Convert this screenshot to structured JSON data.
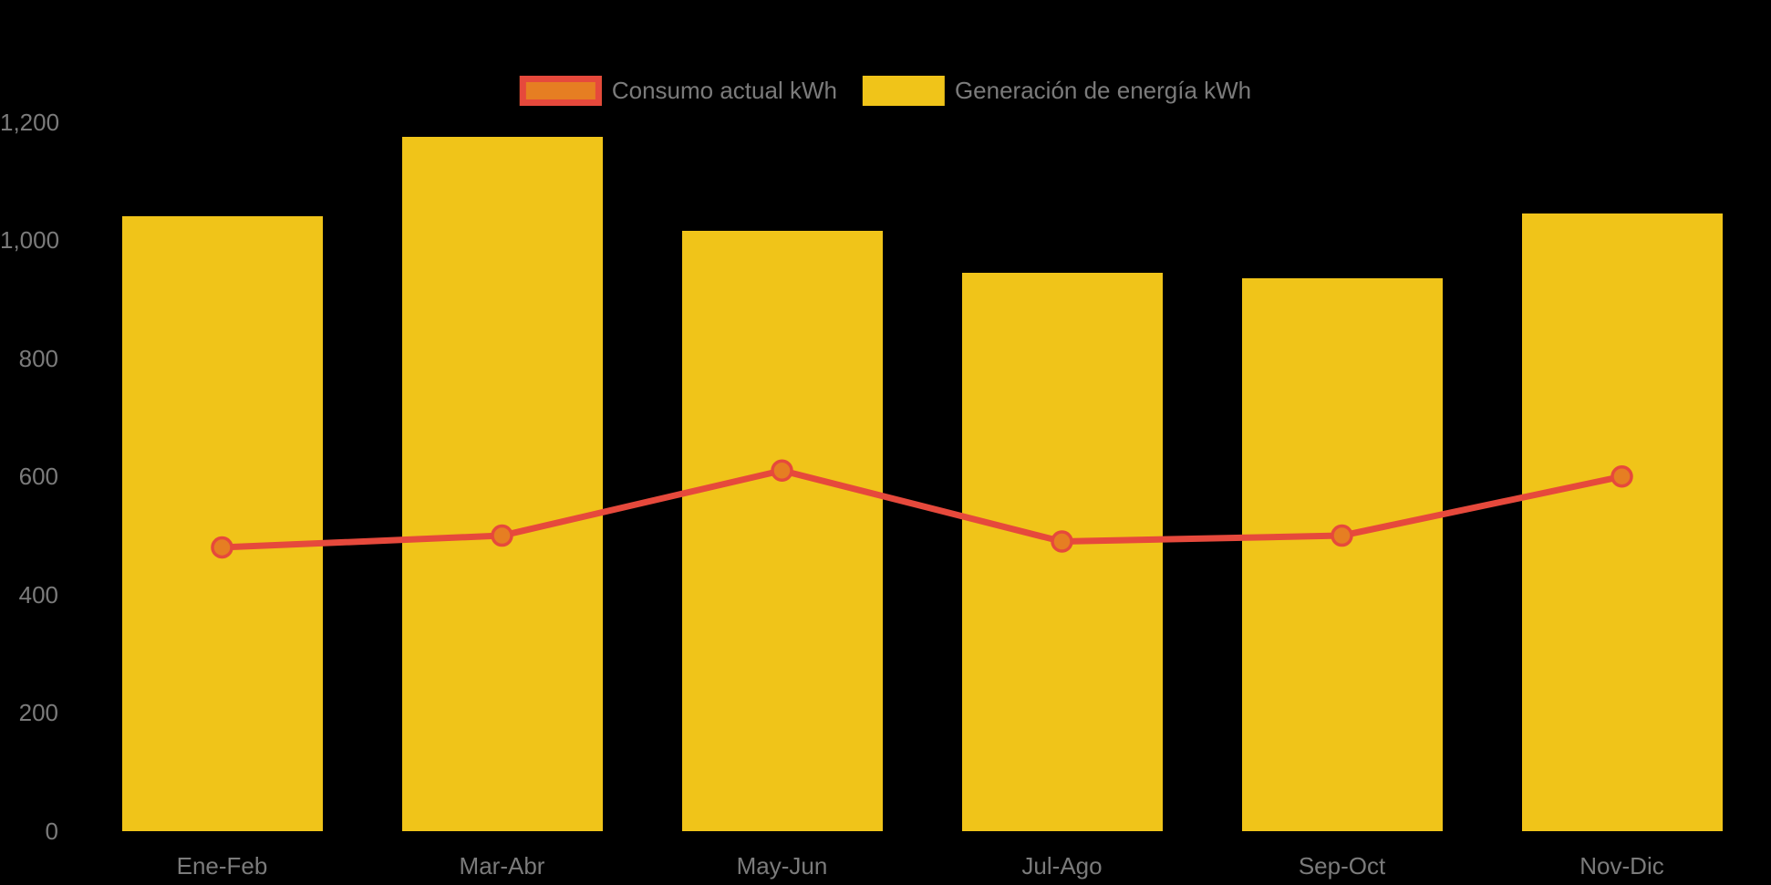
{
  "chart_data": {
    "type": "bar",
    "subtype": "bar-line-combo",
    "title": "",
    "categories": [
      "Ene-Feb",
      "Mar-Abr",
      "May-Jun",
      "Jul-Ago",
      "Sep-Oct",
      "Nov-Dic"
    ],
    "series": [
      {
        "name": "Consumo actual kWh",
        "type": "line",
        "values": [
          480,
          500,
          610,
          490,
          500,
          600
        ],
        "color": "#e6493c",
        "marker_fill": "#e67e22"
      },
      {
        "name": "Generación de energía kWh",
        "type": "bar",
        "values": [
          1040,
          1175,
          1015,
          945,
          935,
          1045
        ],
        "color": "#f0c419"
      }
    ],
    "xlabel": "",
    "ylabel": "",
    "ylim": [
      0,
      1200
    ],
    "yticks": [
      0,
      200,
      400,
      600,
      800,
      1000,
      1200
    ],
    "ytick_labels": [
      "0",
      "200",
      "400",
      "600",
      "800",
      "1,000",
      "1,200"
    ],
    "grid": false,
    "legend_position": "top-center",
    "background_color": "#000000",
    "text_color": "#7b7b7b"
  }
}
